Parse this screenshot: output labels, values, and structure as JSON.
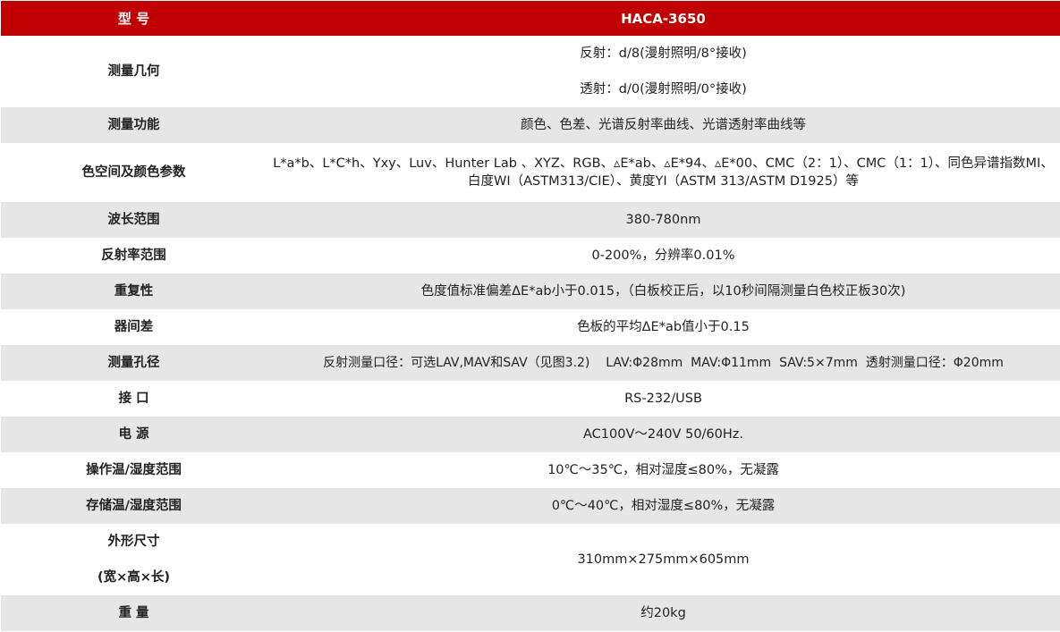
{
  "header": {
    "label": "型 号",
    "model": "HACA-3650"
  },
  "rows": [
    {
      "label": "测量几何",
      "lines": [
        "反射：d/8(漫射照明/8°接收)",
        "透射：d/0(漫射照明/0°接收)"
      ]
    },
    {
      "label": "测量功能",
      "value": "颜色、色差、光谱反射率曲线、光谱透射率曲线等"
    },
    {
      "label": "色空间及颜色参数",
      "value": "L*a*b、L*C*h、Yxy、Luv、Hunter Lab 、XYZ、RGB、▵E*ab、▵E*94、▵E*00、CMC（2：1）、CMC（1：1）、同色异谱指数MI、白度WI（ASTM313/CIE）、黄度YI（ASTM 313/ASTM D1925）等"
    },
    {
      "label": "波长范围",
      "value": "380-780nm"
    },
    {
      "label": "反射率范围",
      "value": "0-200%，分辨率0.01%"
    },
    {
      "label": "重复性",
      "value": "色度值标准偏差ΔE*ab小于0.015，（白板校正后，以10秒间隔测量白色校正板30次)"
    },
    {
      "label": "器间差",
      "value": "色板的平均ΔE*ab值小于0.15"
    },
    {
      "label": "测量孔径",
      "value": "反射测量口径：可选LAV,MAV和SAV（见图3.2)    LAV:Φ28mm  MAV:Φ11mm  SAV:5×7mm  透射测量口径：Φ20mm"
    },
    {
      "label": "接 口",
      "value": "RS-232/USB"
    },
    {
      "label": "电 源",
      "value": "AC100V～240V 50/60Hz."
    },
    {
      "label": "操作温/湿度范围",
      "value": "10℃～35℃，相对湿度≤80%，无凝露"
    },
    {
      "label": "存储温/湿度范围",
      "value": "0℃～40℃，相对湿度≤80%，无凝露"
    },
    {
      "labels": [
        "外形尺寸",
        "(宽×高×长)"
      ],
      "value": "310mm×275mm×605mm"
    },
    {
      "label": "重 量",
      "value": "约20kg"
    }
  ]
}
